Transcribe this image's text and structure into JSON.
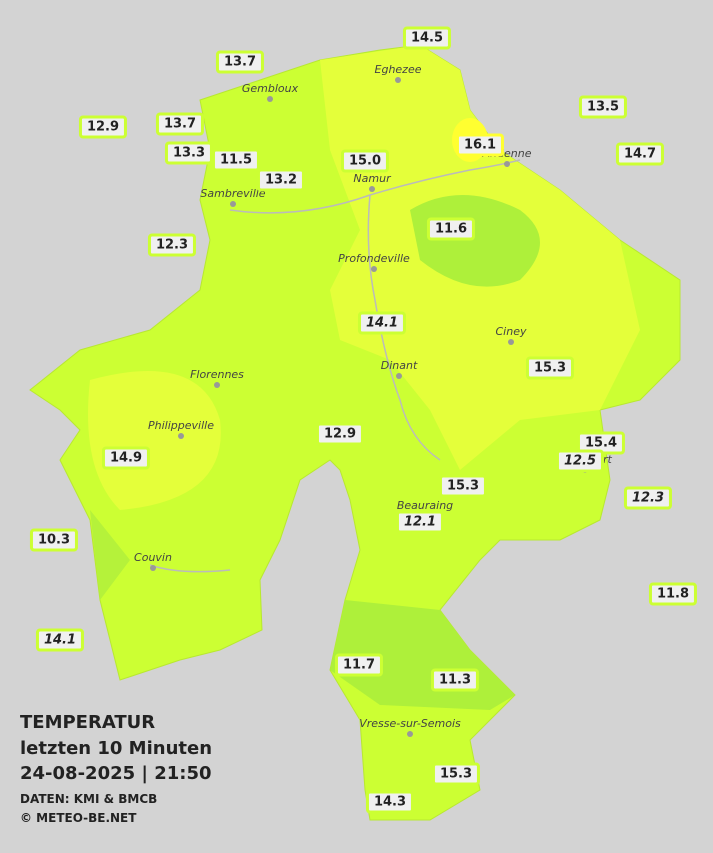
{
  "title": {
    "heading": "TEMPERATUR",
    "period": "letzten 10 Minuten",
    "datetime": "24-08-2025  |  21:50",
    "source": "DATEN: KMI & BMCB",
    "credit": "© METEO-BE.NET"
  },
  "cities": [
    "Eghezee",
    "Gembloux",
    "Andenne",
    "Namur",
    "Sambreville",
    "Profondeville",
    "Ciney",
    "Dinant",
    "Florennes",
    "Philippeville",
    "Rochefort",
    "Beauraing",
    "Couvin",
    "Vresse-sur-Semois"
  ],
  "stations": [
    {
      "value": "13.7"
    },
    {
      "value": "14.5"
    },
    {
      "value": "13.5"
    },
    {
      "value": "12.9"
    },
    {
      "value": "13.7"
    },
    {
      "value": "13.3"
    },
    {
      "value": "11.5"
    },
    {
      "value": "13.2"
    },
    {
      "value": "15.0"
    },
    {
      "value": "16.1"
    },
    {
      "value": "14.7"
    },
    {
      "value": "12.3"
    },
    {
      "value": "11.6"
    },
    {
      "value": "14.1"
    },
    {
      "value": "15.3"
    },
    {
      "value": "12.9"
    },
    {
      "value": "14.9"
    },
    {
      "value": "15.4"
    },
    {
      "value": "12.5"
    },
    {
      "value": "15.3"
    },
    {
      "value": "12.3"
    },
    {
      "value": "12.1"
    },
    {
      "value": "10.3"
    },
    {
      "value": "11.8"
    },
    {
      "value": "14.1"
    },
    {
      "value": "11.7"
    },
    {
      "value": "11.3"
    },
    {
      "value": "15.3"
    },
    {
      "value": "14.3"
    }
  ]
}
